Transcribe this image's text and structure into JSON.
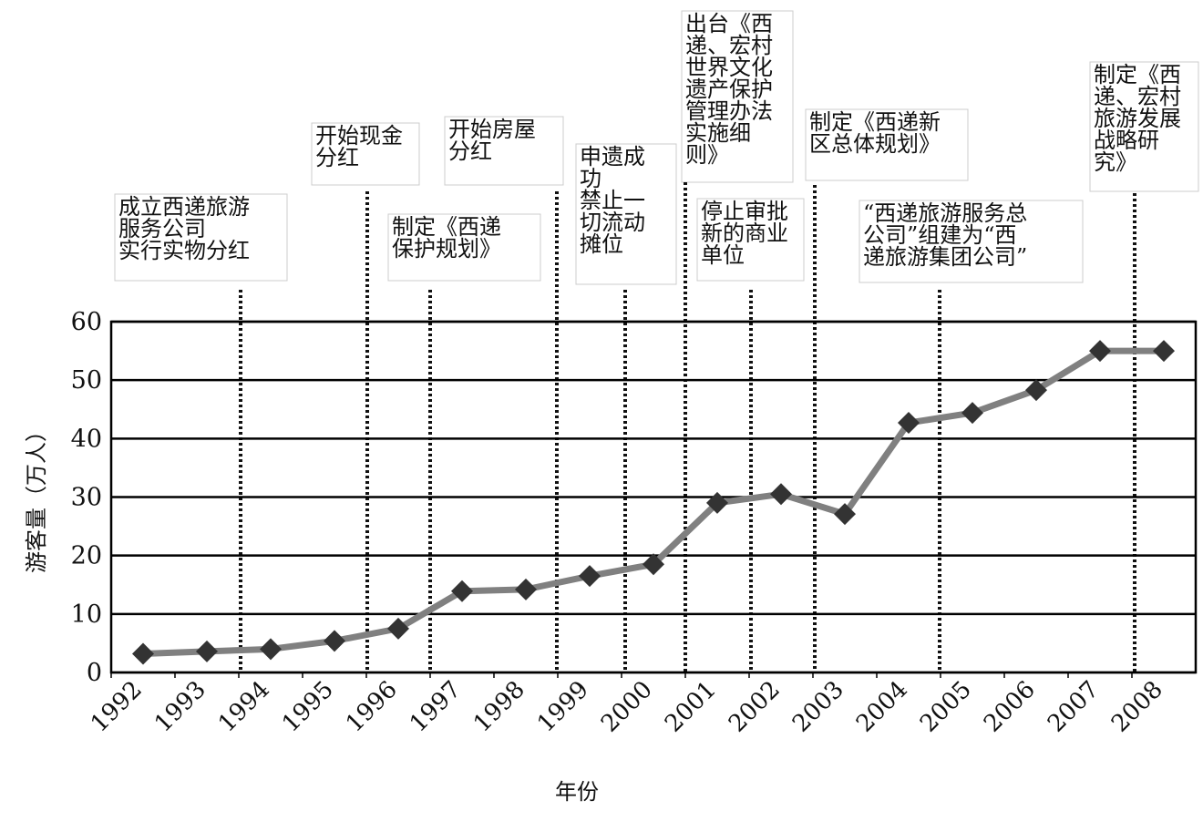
{
  "chart_data": {
    "type": "line",
    "y_label": "游客量（万人）",
    "x_label": "年份",
    "categories": [
      "1992",
      "1993",
      "1994",
      "1995",
      "1996",
      "1997",
      "1998",
      "1999",
      "2000",
      "2001",
      "2002",
      "2003",
      "2004",
      "2005",
      "2006",
      "2007",
      "2008"
    ],
    "series": [
      {
        "color": "#808080",
        "values": [
          3.2,
          3.6,
          4.0,
          5.4,
          7.5,
          13.9,
          14.2,
          16.5,
          18.5,
          29.0,
          30.5,
          27.1,
          42.7,
          44.4,
          48.3,
          55.0,
          55.0
        ]
      }
    ],
    "ylim": [
      0,
      60
    ],
    "yticks": [
      0,
      10,
      20,
      30,
      40,
      50,
      60
    ],
    "grid": true,
    "annotations": [
      {
        "lines": [
          "成立西递旅游",
          "服务公司",
          "实行实物分红"
        ]
      },
      {
        "lines": [
          "开始现金",
          "分红"
        ]
      },
      {
        "lines": [
          "制定《西递",
          "保护规划》"
        ]
      },
      {
        "lines": [
          "开始房屋",
          "分红"
        ]
      },
      {
        "lines": [
          "申遗成",
          "功",
          "禁止一",
          "切流动",
          "摊位"
        ]
      },
      {
        "lines": [
          "出台《西",
          "递、宏村",
          "世界文化",
          "遗产保护",
          "管理办法",
          "实施细",
          "则》"
        ]
      },
      {
        "lines": [
          "停止审批",
          "新的商业",
          "单位"
        ]
      },
      {
        "lines": [
          "制定《西递新",
          "区总体规划》"
        ]
      },
      {
        "lines": [
          "“西递旅游服务总",
          "公司”组建为“西",
          "递旅游集团公司”"
        ]
      },
      {
        "lines": [
          "制定《西",
          "递、宏村",
          "旅游发展",
          "战略研",
          "究》"
        ]
      }
    ]
  }
}
